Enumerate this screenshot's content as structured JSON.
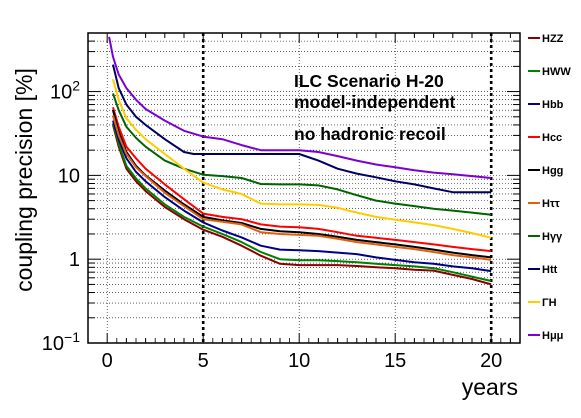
{
  "chart_data": {
    "type": "line",
    "ylabel": "coupling precision [%]",
    "xlabel": "years",
    "x_range": [
      -1,
      21.5
    ],
    "ylim": [
      0.1,
      500
    ],
    "yscale": "log",
    "x_ticks": [
      "0",
      "5",
      "10",
      "15",
      "20"
    ],
    "y_ticks": [
      {
        "value": 0.1,
        "base": "10",
        "exp": "−1"
      },
      {
        "value": 1,
        "label": "1"
      },
      {
        "value": 10,
        "label": "10"
      },
      {
        "value": 100,
        "base": "10",
        "exp": "2"
      }
    ],
    "vertical_dashed_lines": [
      5,
      20
    ],
    "grid": "dotted",
    "legend_position": "right",
    "annotations": [
      "ILC Scenario H-20",
      "model-independent",
      "no hadronic recoil"
    ],
    "series": [
      {
        "name": "HZZ",
        "color": "#8b0000",
        "x": [
          0.3,
          0.6,
          1,
          1.5,
          2,
          3,
          4,
          5,
          6,
          7,
          8,
          9,
          10,
          11,
          12,
          13,
          14,
          15,
          16,
          17,
          18,
          19,
          20
        ],
        "y": [
          40,
          22,
          12,
          8.5,
          6.5,
          4.2,
          3.0,
          2.25,
          1.85,
          1.45,
          1.1,
          0.88,
          0.85,
          0.85,
          0.85,
          0.83,
          0.8,
          0.78,
          0.75,
          0.73,
          0.65,
          0.58,
          0.5
        ]
      },
      {
        "name": "HWW",
        "color": "#008000",
        "x": [
          0.3,
          0.6,
          1,
          1.5,
          2,
          3,
          4,
          5,
          6,
          7,
          8,
          9,
          10,
          11,
          12,
          13,
          14,
          15,
          16,
          17,
          18,
          19,
          20
        ],
        "y": [
          42,
          24,
          13,
          9.2,
          7,
          4.5,
          3.2,
          2.45,
          2.0,
          1.6,
          1.22,
          1.0,
          0.97,
          0.97,
          0.95,
          0.92,
          0.88,
          0.85,
          0.82,
          0.78,
          0.7,
          0.62,
          0.55
        ]
      },
      {
        "name": "Hbb",
        "color": "#00008b",
        "x": [
          0.3,
          0.6,
          1,
          1.5,
          2,
          3,
          4,
          5,
          6,
          7,
          8,
          9,
          10,
          11,
          12,
          13,
          14,
          15,
          16,
          17,
          18,
          19,
          20
        ],
        "y": [
          45,
          27,
          16,
          11,
          8.5,
          5.5,
          3.8,
          2.75,
          2.2,
          1.82,
          1.45,
          1.3,
          1.28,
          1.25,
          1.2,
          1.15,
          1.05,
          0.98,
          0.92,
          0.88,
          0.82,
          0.78,
          0.72
        ]
      },
      {
        "name": "Hcc",
        "color": "#ff0000",
        "x": [
          0.3,
          0.6,
          1,
          1.5,
          2,
          3,
          4,
          5,
          6,
          7,
          8,
          9,
          10,
          11,
          12,
          13,
          14,
          15,
          16,
          17,
          18,
          19,
          20
        ],
        "y": [
          65,
          38,
          22,
          16,
          12,
          7.8,
          5.2,
          3.5,
          3.2,
          3.0,
          2.6,
          2.45,
          2.4,
          2.3,
          2.1,
          1.9,
          1.8,
          1.7,
          1.6,
          1.5,
          1.4,
          1.32,
          1.25
        ]
      },
      {
        "name": "Hgg",
        "color": "#000000",
        "x": [
          0.3,
          0.6,
          1,
          1.5,
          2,
          3,
          4,
          5,
          6,
          7,
          8,
          9,
          10,
          11,
          12,
          13,
          14,
          15,
          16,
          17,
          18,
          19,
          20
        ],
        "y": [
          60,
          33,
          19,
          13,
          10,
          6.6,
          4.5,
          3.2,
          2.9,
          2.7,
          2.3,
          2.15,
          2.1,
          2.0,
          1.85,
          1.7,
          1.6,
          1.5,
          1.4,
          1.3,
          1.2,
          1.12,
          1.05
        ]
      },
      {
        "name": "Hττ",
        "color": "#e06010",
        "x": [
          0.3,
          0.6,
          1,
          1.5,
          2,
          3,
          4,
          5,
          6,
          7,
          8,
          9,
          10,
          11,
          12,
          13,
          14,
          15,
          16,
          17,
          18,
          19,
          20
        ],
        "y": [
          52,
          30,
          18,
          12.5,
          9.8,
          6.2,
          4.3,
          3.0,
          2.8,
          2.6,
          2.1,
          2.0,
          1.95,
          1.9,
          1.75,
          1.6,
          1.5,
          1.4,
          1.32,
          1.22,
          1.12,
          1.05,
          0.98
        ]
      },
      {
        "name": "Hγγ",
        "color": "#006400",
        "x": [
          0.3,
          0.6,
          1,
          1.5,
          2,
          3,
          4,
          5,
          6,
          7,
          8,
          9,
          10,
          11,
          12,
          13,
          14,
          15,
          16,
          17,
          18,
          19,
          20
        ],
        "y": [
          95,
          60,
          38,
          28,
          22,
          15,
          12,
          10.2,
          9.8,
          9.3,
          7.9,
          7.8,
          7.8,
          7.6,
          6.8,
          5.8,
          5.0,
          4.6,
          4.3,
          4.0,
          3.8,
          3.6,
          3.4
        ]
      },
      {
        "name": "Htt",
        "color": "#000060",
        "x": [
          0.3,
          0.6,
          1,
          1.5,
          2,
          3,
          4,
          4.5,
          5,
          6,
          7,
          8,
          9,
          10,
          11,
          12,
          13,
          14,
          15,
          16,
          17,
          18,
          19,
          20
        ],
        "y": [
          210,
          110,
          70,
          50,
          40,
          27,
          19,
          18,
          18,
          18,
          18,
          18,
          18,
          18,
          15,
          12,
          10.5,
          9.5,
          8.5,
          7.8,
          7,
          6.3,
          6.3,
          6.3
        ]
      },
      {
        "name": "ΓH",
        "color": "#ffcc00",
        "x": [
          0.3,
          0.6,
          1,
          1.5,
          2,
          3,
          4,
          5,
          6,
          7,
          8,
          9,
          10,
          11,
          12,
          13,
          14,
          15,
          16,
          17,
          18,
          19,
          20
        ],
        "y": [
          140,
          80,
          48,
          35,
          27,
          18,
          12,
          8.2,
          6.8,
          6.0,
          4.6,
          4.5,
          4.5,
          4.45,
          4.1,
          3.6,
          3.2,
          2.95,
          2.75,
          2.55,
          2.3,
          2.05,
          1.8
        ]
      },
      {
        "name": "Hμμ",
        "color": "#7b00d4",
        "x": [
          0.1,
          0.3,
          0.6,
          1,
          1.5,
          2,
          3,
          4,
          5,
          6,
          7,
          8,
          9,
          10,
          11,
          12,
          13,
          14,
          15,
          16,
          17,
          18,
          19,
          20
        ],
        "y": [
          450,
          260,
          160,
          110,
          80,
          62,
          45,
          34,
          29,
          27,
          23,
          20,
          20,
          20,
          19,
          17,
          15,
          13.5,
          12.5,
          11.5,
          10.8,
          10.3,
          9.8,
          9.3
        ]
      }
    ]
  }
}
